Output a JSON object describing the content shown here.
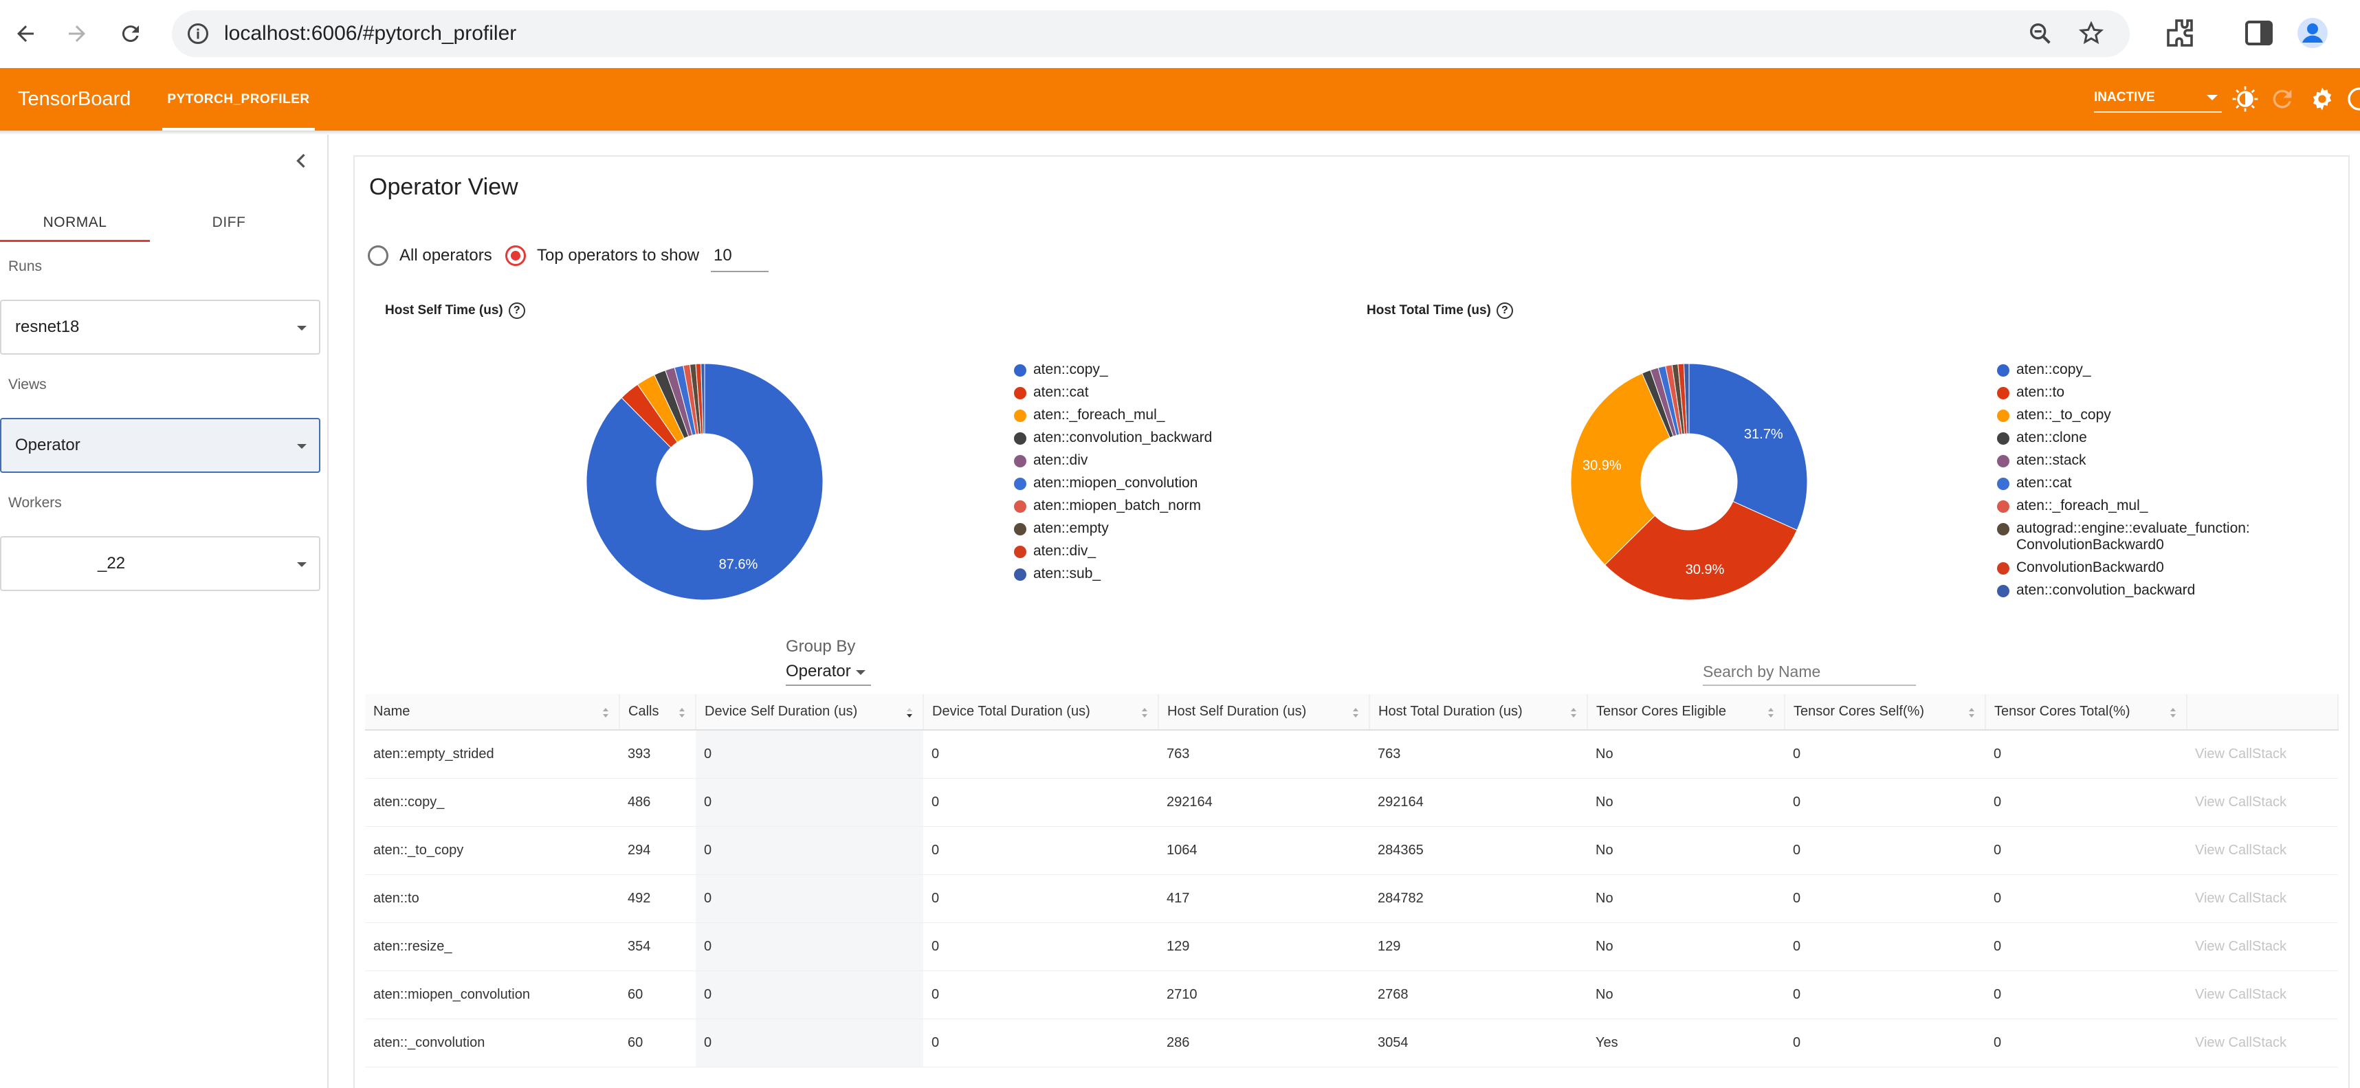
{
  "browser": {
    "url": "localhost:6006/#pytorch_profiler"
  },
  "appbar": {
    "brand": "TensorBoard",
    "plugin_tab": "PYTORCH_PROFILER",
    "status": "INACTIVE"
  },
  "sidebar": {
    "tabs": [
      "NORMAL",
      "DIFF"
    ],
    "runs_label": "Runs",
    "runs_value": "resnet18",
    "views_label": "Views",
    "views_value": "Operator",
    "workers_label": "Workers",
    "workers_value": "_22"
  },
  "main": {
    "title": "Operator View",
    "radio_all": "All operators",
    "radio_top": "Top operators to show",
    "top_n": "10",
    "group_by_label": "Group By",
    "group_by_value": "Operator",
    "search_placeholder": "Search by Name"
  },
  "charts": {
    "host_self": {
      "title": "Host Self Time (us)",
      "help": "?",
      "legend": [
        "aten::copy_",
        "aten::cat",
        "aten::_foreach_mul_",
        "aten::convolution_backward",
        "aten::div",
        "aten::miopen_convolution",
        "aten::miopen_batch_norm",
        "aten::empty",
        "aten::div_",
        "aten::sub_"
      ],
      "colors": [
        "#3366cc",
        "#dc3912",
        "#ff9900",
        "#424242",
        "#8a5a83",
        "#3b6fd4",
        "#dd5a4a",
        "#5b4b3b",
        "#d43c1e",
        "#3a5caa"
      ],
      "big_label": "87.6%"
    },
    "host_total": {
      "title": "Host Total Time (us)",
      "help": "?",
      "legend": [
        "aten::copy_",
        "aten::to",
        "aten::_to_copy",
        "aten::clone",
        "aten::stack",
        "aten::cat",
        "aten::_foreach_mul_",
        "autograd::engine::evaluate_function: ConvolutionBackward0",
        "ConvolutionBackward0",
        "aten::convolution_backward"
      ],
      "colors": [
        "#3366cc",
        "#dc3912",
        "#ff9900",
        "#424242",
        "#8a5a83",
        "#3b6fd4",
        "#dd5a4a",
        "#5b4b3b",
        "#d43c1e",
        "#3a5caa"
      ],
      "label_a": "31.7%",
      "label_b": "30.9%",
      "label_c": "30.9%"
    }
  },
  "chart_data": [
    {
      "type": "pie",
      "title": "Host Self Time (us)",
      "categories": [
        "aten::copy_",
        "aten::cat",
        "aten::_foreach_mul_",
        "aten::convolution_backward",
        "aten::div",
        "aten::miopen_convolution",
        "aten::miopen_batch_norm",
        "aten::empty",
        "aten::div_",
        "aten::sub_"
      ],
      "values": [
        87.6,
        2.8,
        2.6,
        1.6,
        1.3,
        1.2,
        0.9,
        0.8,
        0.7,
        0.5
      ],
      "legend": "right"
    },
    {
      "type": "pie",
      "title": "Host Total Time (us)",
      "categories": [
        "aten::copy_",
        "aten::to",
        "aten::_to_copy",
        "aten::clone",
        "aten::stack",
        "aten::cat",
        "aten::_foreach_mul_",
        "autograd::engine::evaluate_function: ConvolutionBackward0",
        "ConvolutionBackward0",
        "aten::convolution_backward"
      ],
      "values": [
        31.7,
        30.9,
        30.9,
        1.2,
        1.1,
        1.0,
        0.9,
        0.8,
        0.8,
        0.7
      ],
      "legend": "right"
    }
  ],
  "table": {
    "columns": [
      "Name",
      "Calls",
      "Device Self Duration (us)",
      "Device Total Duration (us)",
      "Host Self Duration (us)",
      "Host Total Duration (us)",
      "Tensor Cores Eligible",
      "Tensor Cores Self(%)",
      "Tensor Cores Total(%)",
      ""
    ],
    "rows": [
      [
        "aten::empty_strided",
        "393",
        "0",
        "0",
        "763",
        "763",
        "No",
        "0",
        "0",
        "View CallStack"
      ],
      [
        "aten::copy_",
        "486",
        "0",
        "0",
        "292164",
        "292164",
        "No",
        "0",
        "0",
        "View CallStack"
      ],
      [
        "aten::_to_copy",
        "294",
        "0",
        "0",
        "1064",
        "284365",
        "No",
        "0",
        "0",
        "View CallStack"
      ],
      [
        "aten::to",
        "492",
        "0",
        "0",
        "417",
        "284782",
        "No",
        "0",
        "0",
        "View CallStack"
      ],
      [
        "aten::resize_",
        "354",
        "0",
        "0",
        "129",
        "129",
        "No",
        "0",
        "0",
        "View CallStack"
      ],
      [
        "aten::miopen_convolution",
        "60",
        "0",
        "0",
        "2710",
        "2768",
        "No",
        "0",
        "0",
        "View CallStack"
      ],
      [
        "aten::_convolution",
        "60",
        "0",
        "0",
        "286",
        "3054",
        "Yes",
        "0",
        "0",
        "View CallStack"
      ]
    ]
  }
}
